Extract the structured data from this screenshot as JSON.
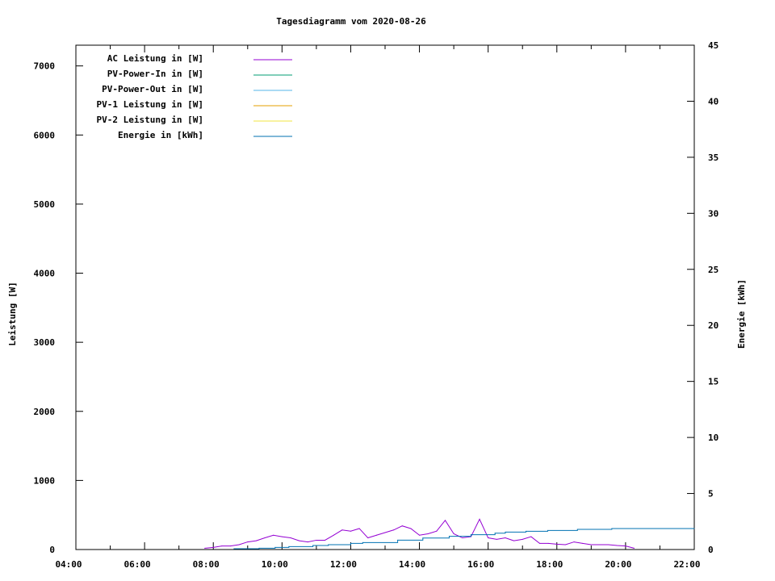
{
  "chart_data": {
    "type": "line",
    "title": "Tagesdiagramm vom 2020-08-26",
    "ylabel": "Leistung [W]",
    "y2label": "Energie [kWh]",
    "xlim": [
      "04:00",
      "22:00"
    ],
    "ylim": [
      0,
      7300
    ],
    "y2lim": [
      0,
      45
    ],
    "x_ticks": [
      "04:00",
      "06:00",
      "08:00",
      "10:00",
      "12:00",
      "14:00",
      "16:00",
      "18:00",
      "20:00",
      "22:00"
    ],
    "y_ticks": [
      0,
      1000,
      2000,
      3000,
      4000,
      5000,
      6000,
      7000
    ],
    "y2_ticks": [
      0,
      5,
      10,
      15,
      20,
      25,
      30,
      35,
      40,
      45
    ],
    "grid": false,
    "legend_position": "top-left",
    "series": [
      {
        "name": "AC Leistung in [W]",
        "color": "#9400d3",
        "axis": "y",
        "x": [
          "07:45",
          "08:00",
          "08:15",
          "08:30",
          "08:45",
          "09:00",
          "09:15",
          "09:30",
          "09:45",
          "10:00",
          "10:15",
          "10:30",
          "10:45",
          "11:00",
          "11:15",
          "11:30",
          "11:45",
          "12:00",
          "12:15",
          "12:30",
          "12:45",
          "13:00",
          "13:15",
          "13:30",
          "13:45",
          "14:00",
          "14:15",
          "14:30",
          "14:45",
          "15:00",
          "15:15",
          "15:30",
          "15:45",
          "16:00",
          "16:15",
          "16:30",
          "16:45",
          "17:00",
          "17:15",
          "17:30",
          "17:45",
          "18:00",
          "18:15",
          "18:30",
          "18:45",
          "19:00",
          "19:15",
          "19:30",
          "19:45",
          "20:00",
          "20:15"
        ],
        "values": [
          19,
          31,
          51,
          51,
          70,
          110,
          127,
          169,
          207,
          186,
          169,
          127,
          110,
          135,
          135,
          207,
          283,
          266,
          304,
          169,
          207,
          245,
          283,
          342,
          304,
          207,
          228,
          266,
          422,
          228,
          169,
          186,
          439,
          169,
          148,
          169,
          127,
          148,
          186,
          89,
          89,
          78,
          70,
          110,
          89,
          70,
          70,
          70,
          59,
          51,
          19
        ]
      },
      {
        "name": "PV-Power-In in [W]",
        "color": "#009e73",
        "axis": "y",
        "x": [],
        "values": []
      },
      {
        "name": "PV-Power-Out in [W]",
        "color": "#56b4e9",
        "axis": "y",
        "x": [],
        "values": []
      },
      {
        "name": "PV-1 Leistung in [W]",
        "color": "#e69f00",
        "axis": "y",
        "x": [],
        "values": []
      },
      {
        "name": "PV-2 Leistung in [W]",
        "color": "#f0e442",
        "axis": "y",
        "x": [],
        "values": []
      },
      {
        "name": "Energie in [kWh]",
        "color": "#0072b2",
        "axis": "y2",
        "step": true,
        "x": [
          "08:36",
          "09:20",
          "09:48",
          "10:12",
          "10:54",
          "11:21",
          "12:00",
          "12:21",
          "13:22",
          "14:06",
          "14:52",
          "15:30",
          "16:12",
          "16:30",
          "17:06",
          "17:44",
          "18:36",
          "19:36",
          "22:00"
        ],
        "values": [
          0.07,
          0.12,
          0.19,
          0.26,
          0.36,
          0.43,
          0.55,
          0.62,
          0.84,
          1.03,
          1.18,
          1.32,
          1.46,
          1.56,
          1.63,
          1.7,
          1.8,
          1.87,
          1.87
        ]
      }
    ]
  }
}
